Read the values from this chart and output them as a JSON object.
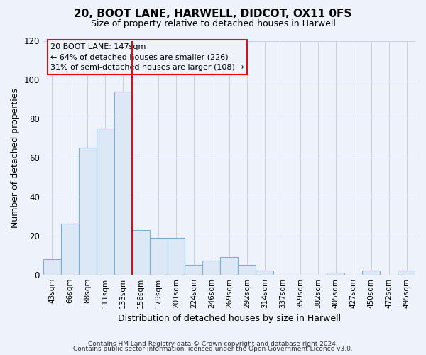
{
  "title": "20, BOOT LANE, HARWELL, DIDCOT, OX11 0FS",
  "subtitle": "Size of property relative to detached houses in Harwell",
  "xlabel": "Distribution of detached houses by size in Harwell",
  "ylabel": "Number of detached properties",
  "categories": [
    "43sqm",
    "66sqm",
    "88sqm",
    "111sqm",
    "133sqm",
    "156sqm",
    "179sqm",
    "201sqm",
    "224sqm",
    "246sqm",
    "269sqm",
    "292sqm",
    "314sqm",
    "337sqm",
    "359sqm",
    "382sqm",
    "405sqm",
    "427sqm",
    "450sqm",
    "472sqm",
    "495sqm"
  ],
  "values": [
    8,
    26,
    65,
    75,
    94,
    23,
    19,
    19,
    5,
    7,
    9,
    5,
    2,
    0,
    0,
    0,
    1,
    0,
    2,
    0,
    2
  ],
  "bar_color": "#dce8f5",
  "bar_edge_color": "#7bafd4",
  "vline_x_index": 5,
  "vline_label": "20 BOOT LANE: 147sqm",
  "annotation_line1": "← 64% of detached houses are smaller (226)",
  "annotation_line2": "31% of semi-detached houses are larger (108) →",
  "ylim": [
    0,
    120
  ],
  "yticks": [
    0,
    20,
    40,
    60,
    80,
    100,
    120
  ],
  "footer1": "Contains HM Land Registry data © Crown copyright and database right 2024.",
  "footer2": "Contains public sector information licensed under the Open Government Licence v3.0.",
  "bg_color": "#eef2fb",
  "plot_bg_color": "#eef2fb",
  "grid_color": "#c8d0e0"
}
